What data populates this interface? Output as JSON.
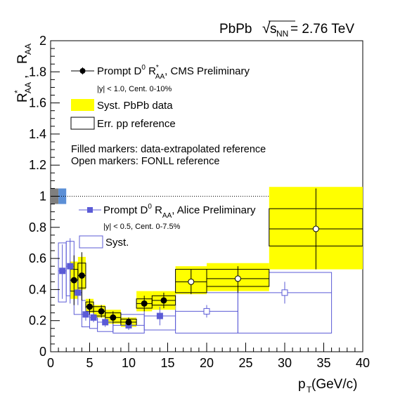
{
  "chart_data": {
    "type": "scatter",
    "title": "PbPb √s_NN = 2.76 TeV",
    "title_parts": {
      "system": "PbPb",
      "sqrt": "√",
      "s": "s",
      "sub": "NN",
      "rest": " = 2.76 TeV"
    },
    "xlabel": {
      "main": "p",
      "sub": "T",
      "rest": " (GeV/c)"
    },
    "ylabel": {
      "r1": "R",
      "r1_sup": "*",
      "r1_sub": "AA",
      "sep": " , ",
      "r2": "R",
      "r2_sub": "AA"
    },
    "xlim": [
      0,
      40
    ],
    "ylim": [
      0,
      2
    ],
    "xticks": [
      "0",
      "5",
      "10",
      "15",
      "20",
      "25",
      "30",
      "35",
      "40"
    ],
    "yticks": [
      "0",
      "0.2",
      "0.4",
      "0.6",
      "0.8",
      "1",
      "1.2",
      "1.4",
      "1.6",
      "1.8",
      "2"
    ],
    "reference_line": 1.0,
    "grid": false,
    "legend_placement": "top-left",
    "cms": {
      "legend": {
        "pre": "Prompt D",
        "sup0": "0",
        "r": " R",
        "sup": "*",
        "sub": "AA",
        "post": ", CMS Preliminary"
      },
      "note": "|y| < 1.0, Cent. 0-10%",
      "syst_label": "Syst. PbPb data",
      "err_label": "Err. pp reference",
      "filled_note": "Filled markers: data-extrapolated reference",
      "open_note": "Open markers: FONLL reference",
      "color": "#000000",
      "syst_color": "#ffff00",
      "points": [
        {
          "x": 3.0,
          "y": 0.46,
          "xlo": 2.5,
          "xhi": 3.5,
          "ylo": 0.3,
          "yhi": 0.62,
          "slo": 0.34,
          "shi": 0.58,
          "filled": true
        },
        {
          "x": 4.0,
          "y": 0.49,
          "xlo": 3.5,
          "xhi": 4.5,
          "ylo": 0.33,
          "yhi": 0.64,
          "slo": 0.4,
          "shi": 0.61,
          "filled": true
        },
        {
          "x": 5.0,
          "y": 0.29,
          "xlo": 4.5,
          "xhi": 5.5,
          "ylo": 0.24,
          "yhi": 0.34,
          "slo": 0.25,
          "shi": 0.34,
          "filled": true
        },
        {
          "x": 6.5,
          "y": 0.26,
          "xlo": 5.5,
          "xhi": 7.0,
          "ylo": 0.22,
          "yhi": 0.3,
          "slo": 0.22,
          "shi": 0.3,
          "filled": true
        },
        {
          "x": 8.0,
          "y": 0.22,
          "xlo": 7.0,
          "xhi": 9.0,
          "ylo": 0.18,
          "yhi": 0.26,
          "slo": 0.18,
          "shi": 0.27,
          "filled": true
        },
        {
          "x": 10.0,
          "y": 0.19,
          "xlo": 9.0,
          "xhi": 11.0,
          "ylo": 0.16,
          "yhi": 0.22,
          "slo": 0.16,
          "shi": 0.22,
          "filled": true
        },
        {
          "x": 12.0,
          "y": 0.31,
          "xlo": 11.0,
          "xhi": 13.0,
          "ylo": 0.26,
          "yhi": 0.36,
          "slo": 0.26,
          "shi": 0.39,
          "filled": true
        },
        {
          "x": 14.5,
          "y": 0.33,
          "xlo": 13.0,
          "xhi": 16.0,
          "ylo": 0.28,
          "yhi": 0.38,
          "slo": 0.27,
          "shi": 0.39,
          "filled": true
        },
        {
          "x": 18.0,
          "y": 0.45,
          "xlo": 16.0,
          "xhi": 20.0,
          "ylo": 0.37,
          "yhi": 0.53,
          "slo": 0.37,
          "shi": 0.55,
          "filled": false
        },
        {
          "x": 24.0,
          "y": 0.47,
          "xlo": 20.0,
          "xhi": 28.0,
          "ylo": 0.38,
          "yhi": 0.55,
          "slo": 0.39,
          "shi": 0.57,
          "filled": false
        },
        {
          "x": 34.0,
          "y": 0.79,
          "xlo": 28.0,
          "xhi": 40.0,
          "ylo": 0.53,
          "yhi": 1.05,
          "slo": 0.53,
          "shi": 1.06,
          "filled": false
        }
      ],
      "ref_boxes": [
        {
          "xlo": 2.5,
          "xhi": 3.5,
          "ylo": 0.39,
          "yhi": 0.53
        },
        {
          "xlo": 3.5,
          "xhi": 4.5,
          "ylo": 0.41,
          "yhi": 0.57
        },
        {
          "xlo": 4.5,
          "xhi": 5.5,
          "ylo": 0.26,
          "yhi": 0.32
        },
        {
          "xlo": 5.5,
          "xhi": 7.0,
          "ylo": 0.23,
          "yhi": 0.29
        },
        {
          "xlo": 7.0,
          "xhi": 9.0,
          "ylo": 0.19,
          "yhi": 0.25
        },
        {
          "xlo": 9.0,
          "xhi": 11.0,
          "ylo": 0.17,
          "yhi": 0.21
        },
        {
          "xlo": 11.0,
          "xhi": 13.0,
          "ylo": 0.28,
          "yhi": 0.34
        },
        {
          "xlo": 13.0,
          "xhi": 16.0,
          "ylo": 0.3,
          "yhi": 0.36
        },
        {
          "xlo": 16.0,
          "xhi": 20.0,
          "ylo": 0.38,
          "yhi": 0.53
        },
        {
          "xlo": 20.0,
          "xhi": 28.0,
          "ylo": 0.42,
          "yhi": 0.53
        },
        {
          "xlo": 28.0,
          "xhi": 40.0,
          "ylo": 0.68,
          "yhi": 0.92
        }
      ]
    },
    "alice": {
      "legend": {
        "pre": "Prompt D",
        "sup0": "0",
        "r": " R",
        "sub": "AA",
        "post": ", Alice Preliminary"
      },
      "note": "|y| < 0.5, Cent. 0-7.5%",
      "syst_label": "Syst.",
      "color": "#5b5bd6",
      "points": [
        {
          "x": 1.5,
          "y": 0.52,
          "xlo": 1.0,
          "xhi": 2.0,
          "ylo": 0.34,
          "yhi": 0.69,
          "slo": 0.32,
          "shi": 0.7,
          "filled": true
        },
        {
          "x": 2.5,
          "y": 0.55,
          "xlo": 2.0,
          "xhi": 3.0,
          "ylo": 0.31,
          "yhi": 0.73,
          "slo": 0.36,
          "shi": 0.71,
          "filled": true
        },
        {
          "x": 3.5,
          "y": 0.38,
          "xlo": 3.0,
          "xhi": 4.0,
          "ylo": 0.3,
          "yhi": 0.46,
          "slo": 0.24,
          "shi": 0.49,
          "filled": true
        },
        {
          "x": 4.5,
          "y": 0.24,
          "xlo": 4.0,
          "xhi": 5.0,
          "ylo": 0.2,
          "yhi": 0.28,
          "slo": 0.16,
          "shi": 0.33,
          "filled": true
        },
        {
          "x": 5.5,
          "y": 0.22,
          "xlo": 5.0,
          "xhi": 6.0,
          "ylo": 0.19,
          "yhi": 0.25,
          "slo": 0.15,
          "shi": 0.28,
          "filled": true
        },
        {
          "x": 7.0,
          "y": 0.19,
          "xlo": 6.0,
          "xhi": 8.0,
          "ylo": 0.16,
          "yhi": 0.22,
          "slo": 0.13,
          "shi": 0.25,
          "filled": true
        },
        {
          "x": 10.0,
          "y": 0.17,
          "xlo": 8.0,
          "xhi": 12.0,
          "ylo": 0.14,
          "yhi": 0.2,
          "slo": 0.12,
          "shi": 0.24,
          "filled": true
        },
        {
          "x": 14.0,
          "y": 0.23,
          "xlo": 12.0,
          "xhi": 16.0,
          "ylo": 0.17,
          "yhi": 0.29,
          "slo": 0.14,
          "shi": 0.3,
          "filled": true
        },
        {
          "x": 20.0,
          "y": 0.26,
          "xlo": 16.0,
          "xhi": 24.0,
          "ylo": 0.22,
          "yhi": 0.3,
          "slo": 0.12,
          "shi": 0.38,
          "filled": false
        },
        {
          "x": 30.0,
          "y": 0.38,
          "xlo": 24.0,
          "xhi": 36.0,
          "ylo": 0.31,
          "yhi": 0.45,
          "slo": 0.12,
          "shi": 0.51,
          "filled": false
        }
      ]
    },
    "norm_boxes": [
      {
        "xlo": 0.0,
        "xhi": 1.0,
        "ylo": 0.95,
        "yhi": 1.05,
        "color": "#7f7f7f"
      },
      {
        "xlo": 1.0,
        "xhi": 2.0,
        "ylo": 0.95,
        "yhi": 1.05,
        "color": "#5b8fd6"
      }
    ]
  }
}
